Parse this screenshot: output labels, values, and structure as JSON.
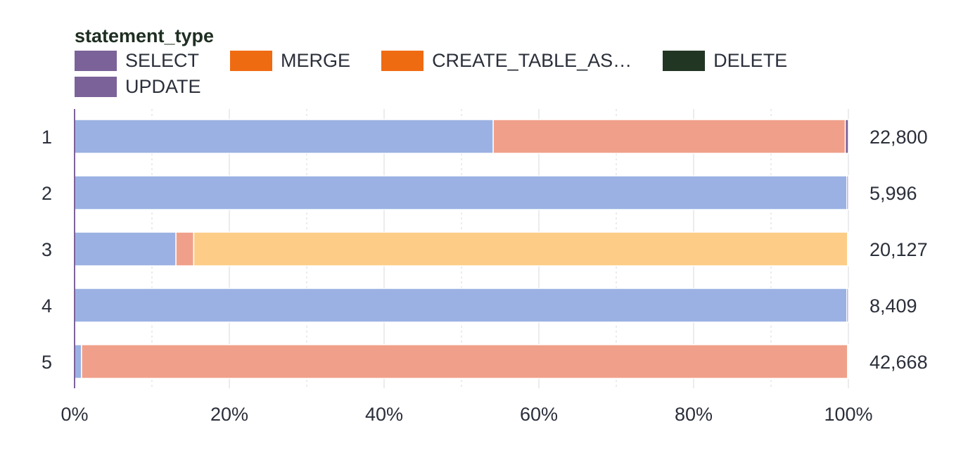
{
  "chart_data": {
    "type": "bar",
    "orientation": "horizontal",
    "stacked": "percent",
    "legend": {
      "title": "statement_type",
      "placement": "top",
      "entries": [
        {
          "name": "SELECT",
          "legend_color": "#7b6399",
          "bar_color": "#9bb1e3"
        },
        {
          "name": "MERGE",
          "legend_color": "#ef6b12",
          "bar_color": "#f0a08a"
        },
        {
          "name": "CREATE_TABLE_AS…",
          "legend_color": "#ef6b12",
          "bar_color": "#fdcd87"
        },
        {
          "name": "DELETE",
          "legend_color": "#223624",
          "bar_color": "#223624"
        },
        {
          "name": "UPDATE",
          "legend_color": "#7b6399",
          "bar_color": "#7b6399"
        }
      ]
    },
    "categories": [
      "1",
      "2",
      "3",
      "4",
      "5"
    ],
    "series": [
      {
        "name": "SELECT",
        "values": [
          54.1,
          99.8,
          13.1,
          99.8,
          0.9
        ]
      },
      {
        "name": "MERGE",
        "values": [
          45.5,
          0,
          2.3,
          0,
          99.0
        ]
      },
      {
        "name": "CREATE_TABLE_AS…",
        "values": [
          0,
          0,
          84.5,
          0,
          0
        ]
      },
      {
        "name": "DELETE",
        "values": [
          0,
          0,
          0,
          0,
          0
        ]
      },
      {
        "name": "UPDATE",
        "values": [
          0.4,
          0.2,
          0.1,
          0.2,
          0.1
        ]
      }
    ],
    "totals": [
      "22,800",
      "5,996",
      "20,127",
      "8,409",
      "42,668"
    ],
    "xlim": [
      0,
      100
    ],
    "x_ticks": [
      "0%",
      "20%",
      "40%",
      "60%",
      "80%",
      "100%"
    ],
    "grid": true,
    "axis_color": "#7b6399",
    "grid_color": "#d9d9dc"
  }
}
